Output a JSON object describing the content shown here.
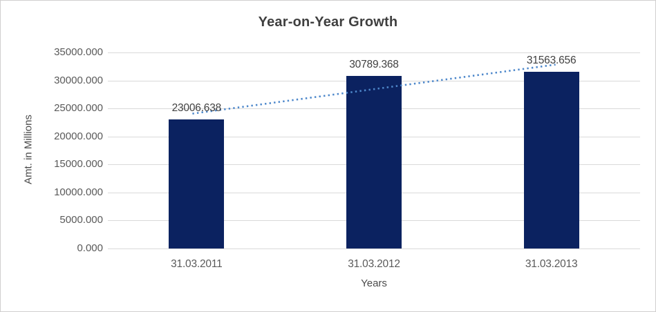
{
  "chart_data": {
    "type": "bar",
    "title": "Year-on-Year Growth",
    "xlabel": "Years",
    "ylabel": "Amt. in Millions",
    "categories": [
      "31.03.2011",
      "31.03.2012",
      "31.03.2013"
    ],
    "values": [
      23006.638,
      30789.368,
      31563.656
    ],
    "data_labels": [
      "23006.638",
      "30789.368",
      "31563.656"
    ],
    "ylim": [
      0,
      35000
    ],
    "ytick_step": 5000,
    "ytick_labels": [
      "0.000",
      "5000.000",
      "10000.000",
      "15000.000",
      "20000.000",
      "25000.000",
      "30000.000",
      "35000.000"
    ],
    "grid": true,
    "legend": "none",
    "colors": {
      "bar": "#0b2260",
      "gridline": "#d9d9d9",
      "trendline": "#4e88cb",
      "chart_border": "#d0cece",
      "title_text": "#3f3f3f",
      "tick_text": "#595959"
    },
    "trendline": {
      "style": "dotted",
      "fit": "linear"
    }
  }
}
